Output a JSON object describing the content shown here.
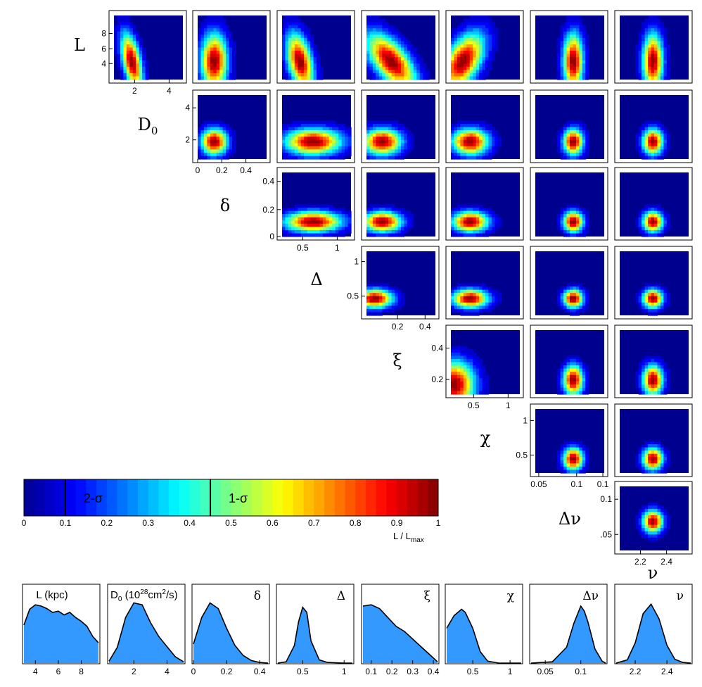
{
  "chart_data": {
    "type": "heatmap",
    "description_of_layout": "triangle-matrix",
    "parameters": [
      {
        "key": "L",
        "symbol": "L",
        "hist_title": "L (kpc)",
        "range": [
          3,
          9.5
        ],
        "ticks": [
          "4",
          "6",
          "8"
        ],
        "tick_values": [
          4,
          6,
          8
        ]
      },
      {
        "key": "D0",
        "symbol": "D",
        "symbol_sub": "0",
        "hist_title": "D",
        "hist_title_sub": "0",
        "hist_title_rest": " (10",
        "hist_title_sup": "28",
        "hist_title_end": "cm",
        "hist_title_sup2": "2",
        "hist_title_tail": "/s)",
        "range": [
          0.5,
          5
        ],
        "ticks": [
          "2",
          "4"
        ],
        "tick_values": [
          2,
          4
        ]
      },
      {
        "key": "delta",
        "symbol": "δ",
        "hist_title": "δ",
        "range": [
          0,
          0.45
        ],
        "ticks": [
          "0",
          "0.2",
          "0.4"
        ],
        "tick_values": [
          0,
          0.2,
          0.4
        ]
      },
      {
        "key": "Delta",
        "symbol": "Δ",
        "hist_title": "Δ",
        "range": [
          0.2,
          1.1
        ],
        "ticks": [
          "0.5",
          "1"
        ],
        "tick_values": [
          0.5,
          1
        ]
      },
      {
        "key": "xi",
        "symbol": "ξ",
        "hist_title": "ξ",
        "range": [
          0.06,
          0.42
        ],
        "ticks": [
          "0.1",
          "0.2",
          "0.3",
          "0.4"
        ],
        "tick_values": [
          0.1,
          0.2,
          0.3,
          0.4
        ]
      },
      {
        "key": "chi",
        "symbol": "χ",
        "hist_title": "χ",
        "range": [
          0.15,
          1.15
        ],
        "ticks": [
          "0.5",
          "1"
        ],
        "tick_values": [
          0.5,
          1
        ]
      },
      {
        "key": "dnu",
        "symbol": "Δν",
        "hist_title": "Δν",
        "range": [
          0.03,
          0.135
        ],
        "ticks": [
          "0.05",
          "0.1"
        ],
        "tick_values": [
          0.05,
          0.1
        ]
      },
      {
        "key": "nu",
        "symbol": "ν",
        "hist_title": "ν",
        "range": [
          2.08,
          2.55
        ],
        "ticks": [
          "2.2",
          "2.4"
        ],
        "tick_values": [
          2.2,
          2.4
        ]
      }
    ],
    "matrix_tick_labels": {
      "L_y": [
        "4",
        "6",
        "8"
      ],
      "L_x": [
        "2",
        "4"
      ],
      "D0_y": [
        "2",
        "4"
      ],
      "D0_x": [
        "0",
        "0.2",
        "0.4"
      ],
      "delta_y": [
        "0",
        "0.2",
        "0.4"
      ],
      "delta_x": [
        "0.5",
        "1"
      ],
      "Delta_y": [
        "0.5",
        "1"
      ],
      "Delta_x": [
        "0.2",
        "0.4"
      ],
      "xi_y": [
        "0.2",
        "0.4"
      ],
      "xi_x": [
        "0.5",
        "1"
      ],
      "chi_y": [
        "0.5",
        "1"
      ],
      "chi_x": [
        "0.05",
        "0.1",
        "0.1"
      ],
      "dnu_y": [
        ".05",
        "0.1"
      ],
      "dnu_x": [
        "2.2",
        "2.4"
      ]
    },
    "marginals": [
      {
        "name": "L",
        "x": [
          3.0,
          3.5,
          4.0,
          4.5,
          5.0,
          5.5,
          6.0,
          6.5,
          7.0,
          7.5,
          8.0,
          8.5,
          9.0,
          9.5
        ],
        "values": [
          0.6,
          0.85,
          0.92,
          0.9,
          0.86,
          0.8,
          0.82,
          0.76,
          0.8,
          0.72,
          0.66,
          0.58,
          0.42,
          0.32
        ]
      },
      {
        "name": "D0",
        "x": [
          0.5,
          1.0,
          1.5,
          2.0,
          2.5,
          3.0,
          3.5,
          4.0,
          4.5,
          5.0
        ],
        "values": [
          0.03,
          0.25,
          0.72,
          0.95,
          0.92,
          0.64,
          0.42,
          0.26,
          0.1,
          0.02
        ]
      },
      {
        "name": "delta",
        "x": [
          0.0,
          0.05,
          0.1,
          0.15,
          0.2,
          0.25,
          0.3,
          0.35,
          0.4,
          0.45
        ],
        "values": [
          0.3,
          0.72,
          0.95,
          0.86,
          0.55,
          0.28,
          0.12,
          0.04,
          0.01,
          0.0
        ]
      },
      {
        "name": "Delta",
        "x": [
          0.2,
          0.3,
          0.4,
          0.45,
          0.5,
          0.55,
          0.6,
          0.7,
          0.8,
          1.0,
          1.1
        ],
        "values": [
          0.0,
          0.02,
          0.28,
          0.65,
          0.88,
          0.8,
          0.35,
          0.05,
          0.01,
          0.0,
          0.0
        ]
      },
      {
        "name": "xi",
        "x": [
          0.06,
          0.1,
          0.14,
          0.18,
          0.22,
          0.26,
          0.3,
          0.34,
          0.38,
          0.42
        ],
        "values": [
          0.9,
          0.92,
          0.86,
          0.72,
          0.58,
          0.5,
          0.38,
          0.26,
          0.14,
          0.02
        ]
      },
      {
        "name": "chi",
        "x": [
          0.15,
          0.25,
          0.35,
          0.4,
          0.5,
          0.6,
          0.7,
          0.85,
          1.0,
          1.15
        ],
        "values": [
          0.55,
          0.75,
          0.85,
          0.8,
          0.55,
          0.18,
          0.03,
          0.0,
          0.0,
          0.0
        ]
      },
      {
        "name": "dnu",
        "x": [
          0.03,
          0.06,
          0.08,
          0.09,
          0.1,
          0.105,
          0.11,
          0.12,
          0.13,
          0.135
        ],
        "values": [
          0.0,
          0.02,
          0.25,
          0.62,
          0.9,
          0.82,
          0.65,
          0.22,
          0.03,
          0.0
        ]
      },
      {
        "name": "nu",
        "x": [
          2.08,
          2.15,
          2.2,
          2.25,
          2.3,
          2.35,
          2.4,
          2.45,
          2.5,
          2.55
        ],
        "values": [
          0.0,
          0.05,
          0.32,
          0.78,
          0.93,
          0.7,
          0.28,
          0.06,
          0.01,
          0.0
        ]
      }
    ],
    "colorbar": {
      "range": [
        0,
        1
      ],
      "ticks": [
        "0",
        "0.1",
        "0.2",
        "0.3",
        "0.4",
        "0.5",
        "0.6",
        "0.7",
        "0.8",
        "0.9",
        "1"
      ],
      "tick_values": [
        0,
        0.1,
        0.2,
        0.3,
        0.4,
        0.5,
        0.6,
        0.7,
        0.8,
        0.9,
        1
      ],
      "label": "L / L",
      "label_sub": "max",
      "contour_lines": [
        {
          "value": 0.1,
          "label": "2-σ"
        },
        {
          "value": 0.45,
          "label": "1-σ"
        }
      ]
    }
  },
  "colors": {
    "background_low": "#00008f",
    "histogram_fill": "#3399ff",
    "axis": "#000000"
  }
}
